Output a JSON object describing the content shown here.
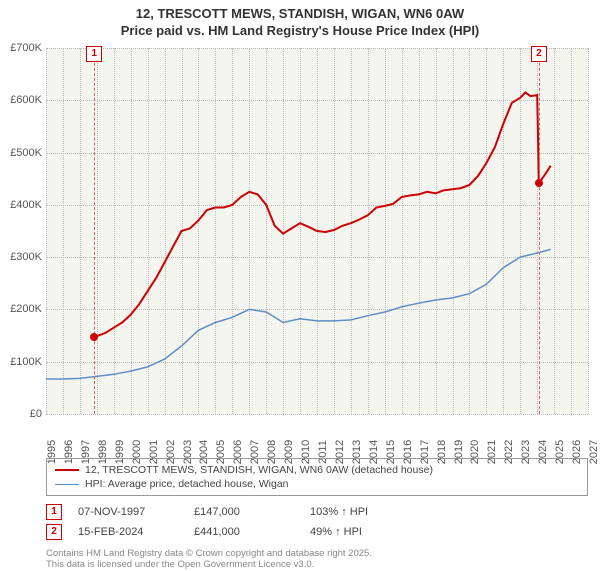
{
  "title_line1": "12, TRESCOTT MEWS, STANDISH, WIGAN, WN6 0AW",
  "title_line2": "Price paid vs. HM Land Registry's House Price Index (HPI)",
  "chart": {
    "type": "line",
    "background_color": "#f5f5f0",
    "grid_color": "#bbbbbb",
    "x_range": [
      1995,
      2027
    ],
    "y_range": [
      0,
      700000
    ],
    "y_ticks": [
      0,
      100000,
      200000,
      300000,
      400000,
      500000,
      600000,
      700000
    ],
    "y_tick_labels": [
      "£0",
      "£100K",
      "£200K",
      "£300K",
      "£400K",
      "£500K",
      "£600K",
      "£700K"
    ],
    "x_ticks": [
      1995,
      1996,
      1997,
      1998,
      1999,
      2000,
      2001,
      2002,
      2003,
      2004,
      2005,
      2006,
      2007,
      2008,
      2009,
      2010,
      2011,
      2012,
      2013,
      2014,
      2015,
      2016,
      2017,
      2018,
      2019,
      2020,
      2021,
      2022,
      2023,
      2024,
      2025,
      2026,
      2027
    ],
    "label_fontsize": 11,
    "series": [
      {
        "name": "price_paid",
        "label": "12, TRESCOTT MEWS, STANDISH, WIGAN, WN6 0AW (detached house)",
        "color": "#cc0000",
        "line_width": 2,
        "points": [
          [
            1997.85,
            147000
          ],
          [
            1998.5,
            155000
          ],
          [
            1999,
            165000
          ],
          [
            1999.5,
            175000
          ],
          [
            2000,
            190000
          ],
          [
            2000.5,
            210000
          ],
          [
            2001,
            235000
          ],
          [
            2001.5,
            260000
          ],
          [
            2002,
            290000
          ],
          [
            2002.5,
            320000
          ],
          [
            2003,
            350000
          ],
          [
            2003.5,
            355000
          ],
          [
            2004,
            370000
          ],
          [
            2004.5,
            390000
          ],
          [
            2005,
            395000
          ],
          [
            2005.5,
            395000
          ],
          [
            2006,
            400000
          ],
          [
            2006.5,
            415000
          ],
          [
            2007,
            425000
          ],
          [
            2007.5,
            420000
          ],
          [
            2008,
            400000
          ],
          [
            2008.5,
            360000
          ],
          [
            2009,
            345000
          ],
          [
            2009.5,
            355000
          ],
          [
            2010,
            365000
          ],
          [
            2010.5,
            358000
          ],
          [
            2011,
            350000
          ],
          [
            2011.5,
            348000
          ],
          [
            2012,
            352000
          ],
          [
            2012.5,
            360000
          ],
          [
            2013,
            365000
          ],
          [
            2013.5,
            372000
          ],
          [
            2014,
            380000
          ],
          [
            2014.5,
            395000
          ],
          [
            2015,
            398000
          ],
          [
            2015.5,
            402000
          ],
          [
            2016,
            415000
          ],
          [
            2016.5,
            418000
          ],
          [
            2017,
            420000
          ],
          [
            2017.5,
            425000
          ],
          [
            2018,
            422000
          ],
          [
            2018.5,
            428000
          ],
          [
            2019,
            430000
          ],
          [
            2019.5,
            432000
          ],
          [
            2020,
            438000
          ],
          [
            2020.5,
            455000
          ],
          [
            2021,
            480000
          ],
          [
            2021.5,
            510000
          ],
          [
            2022,
            555000
          ],
          [
            2022.5,
            595000
          ],
          [
            2023,
            605000
          ],
          [
            2023.3,
            615000
          ],
          [
            2023.6,
            608000
          ],
          [
            2024,
            610000
          ],
          [
            2024.1,
            441000
          ],
          [
            2024.5,
            460000
          ],
          [
            2024.8,
            475000
          ]
        ]
      },
      {
        "name": "hpi",
        "label": "HPI: Average price, detached house, Wigan",
        "color": "#5b8fc7",
        "line_width": 1.5,
        "points": [
          [
            1995,
            67000
          ],
          [
            1996,
            67000
          ],
          [
            1997,
            68000
          ],
          [
            1998,
            72000
          ],
          [
            1999,
            76000
          ],
          [
            2000,
            82000
          ],
          [
            2001,
            90000
          ],
          [
            2002,
            105000
          ],
          [
            2003,
            130000
          ],
          [
            2004,
            160000
          ],
          [
            2005,
            175000
          ],
          [
            2006,
            185000
          ],
          [
            2007,
            200000
          ],
          [
            2008,
            195000
          ],
          [
            2009,
            175000
          ],
          [
            2010,
            182000
          ],
          [
            2011,
            178000
          ],
          [
            2012,
            178000
          ],
          [
            2013,
            180000
          ],
          [
            2014,
            188000
          ],
          [
            2015,
            195000
          ],
          [
            2016,
            205000
          ],
          [
            2017,
            212000
          ],
          [
            2018,
            218000
          ],
          [
            2019,
            222000
          ],
          [
            2020,
            230000
          ],
          [
            2021,
            248000
          ],
          [
            2022,
            280000
          ],
          [
            2023,
            300000
          ],
          [
            2024,
            308000
          ],
          [
            2024.8,
            315000
          ]
        ]
      }
    ],
    "markers": [
      {
        "id": "1",
        "x": 1997.85,
        "y": 147000
      },
      {
        "id": "2",
        "x": 2024.1,
        "y": 441000
      }
    ]
  },
  "legend": {
    "items": [
      {
        "color": "#cc0000",
        "width": 2,
        "label_key": "chart.series.0.label"
      },
      {
        "color": "#5b8fc7",
        "width": 1.5,
        "label_key": "chart.series.1.label"
      }
    ]
  },
  "annotations": [
    {
      "id": "1",
      "date": "07-NOV-1997",
      "price": "£147,000",
      "pct": "103% ↑ HPI"
    },
    {
      "id": "2",
      "date": "15-FEB-2024",
      "price": "£441,000",
      "pct": "49% ↑ HPI"
    }
  ],
  "footnote_line1": "Contains HM Land Registry data © Crown copyright and database right 2025.",
  "footnote_line2": "This data is licensed under the Open Government Licence v3.0."
}
